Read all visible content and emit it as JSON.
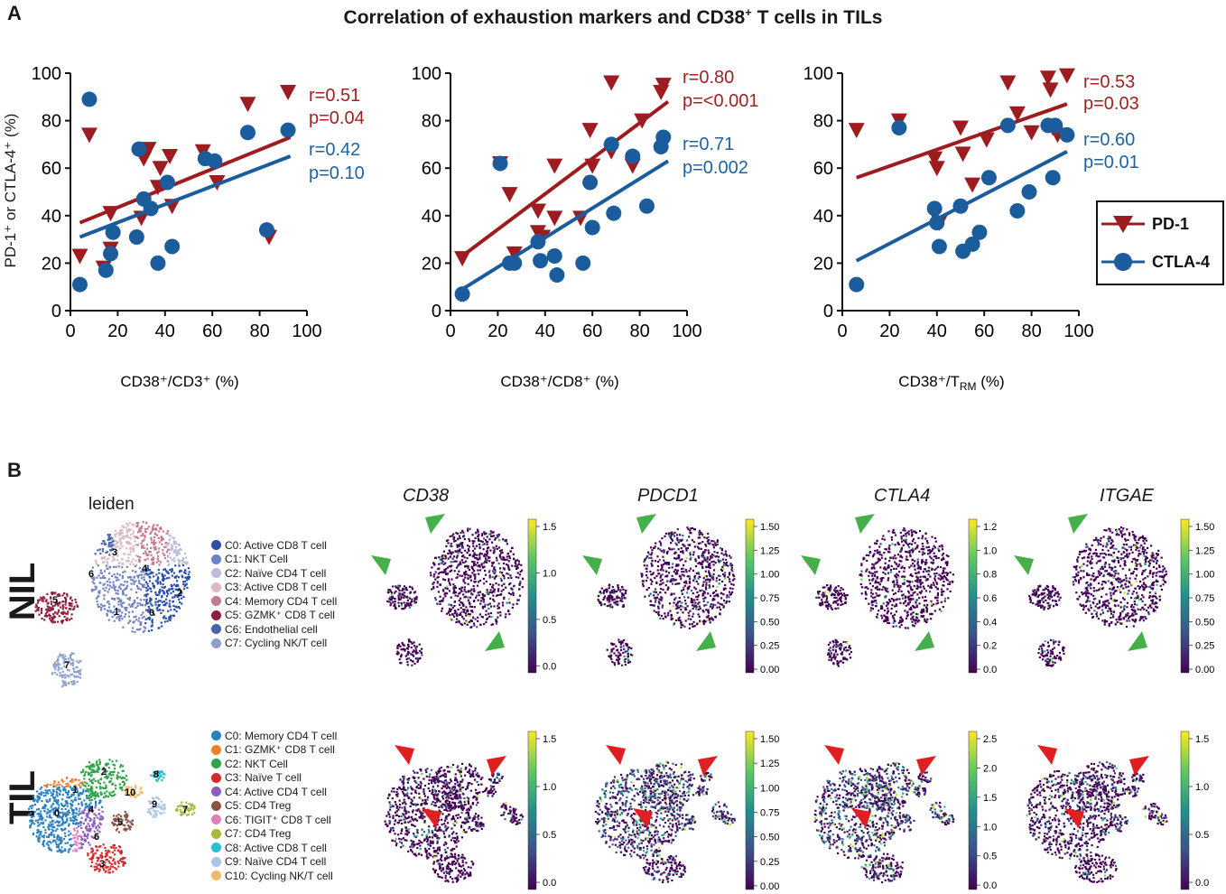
{
  "panel_a": {
    "letter": "A",
    "title_parts": [
      "Correlation of exhaustion markers and CD38",
      "+",
      " T cells in TILs"
    ]
  },
  "panel_b": {
    "letter": "B"
  },
  "y_axis_label": "PD-1⁺ or CTLA-4⁺ (%)",
  "legend": {
    "pd1": "PD-1",
    "ctla4": "CTLA-4"
  },
  "colors": {
    "pd1": "#9c1c1f",
    "ctla4": "#1b5c9c",
    "ann_pd1": "#a02222",
    "ann_ctla4": "#1e62a0",
    "green_arrow": "#45b049",
    "red_arrow": "#e02020"
  },
  "chart_data": [
    {
      "type": "scatter",
      "xlabel": "CD38⁺/CD3⁺ (%)",
      "ylabel": "PD-1⁺ or CTLA-4⁺ (%)",
      "xlim": [
        0,
        100
      ],
      "ylim": [
        0,
        100
      ],
      "xticks": [
        0,
        20,
        40,
        60,
        80,
        100
      ],
      "yticks": [
        0,
        20,
        40,
        60,
        80,
        100
      ],
      "series": [
        {
          "name": "PD-1",
          "marker": "triangle-down",
          "x": [
            4,
            8,
            14,
            17,
            17,
            30,
            31,
            33,
            37,
            38,
            42,
            43,
            56,
            62,
            75,
            84,
            92
          ],
          "y": [
            23,
            74,
            18,
            26,
            41,
            39,
            64,
            68,
            52,
            60,
            65,
            44,
            67,
            54,
            87,
            31,
            92
          ],
          "fit": [
            [
              4,
              37
            ],
            [
              93,
              73
            ]
          ],
          "r": "r=0.51",
          "p": "p=0.04"
        },
        {
          "name": "CTLA-4",
          "marker": "circle",
          "x": [
            4,
            8,
            15,
            17,
            18,
            28,
            29,
            31,
            34,
            37,
            41,
            43,
            57,
            61,
            75,
            83,
            92
          ],
          "y": [
            11,
            89,
            17,
            24,
            33,
            31,
            68,
            47,
            43,
            20,
            54,
            27,
            64,
            63,
            75,
            34,
            76
          ],
          "fit": [
            [
              4,
              31
            ],
            [
              93,
              65
            ]
          ],
          "r": "r=0.42",
          "p": "p=0.10"
        }
      ]
    },
    {
      "type": "scatter",
      "xlabel": "CD38⁺/CD8⁺ (%)",
      "ylabel": "",
      "xlim": [
        0,
        100
      ],
      "ylim": [
        0,
        100
      ],
      "xticks": [
        0,
        20,
        40,
        60,
        80,
        100
      ],
      "yticks": [
        0,
        20,
        40,
        60,
        80,
        100
      ],
      "series": [
        {
          "name": "PD-1",
          "marker": "triangle-down",
          "x": [
            5,
            21,
            25,
            27,
            37,
            37,
            39,
            44,
            44,
            55,
            59,
            60,
            68,
            68,
            77,
            81,
            89,
            90
          ],
          "y": [
            22,
            62,
            49,
            24,
            42,
            33,
            31,
            39,
            61,
            39,
            76,
            61,
            96,
            67,
            61,
            80,
            92,
            95
          ],
          "fit": [
            [
              5,
              23
            ],
            [
              92,
              88
            ]
          ],
          "r": "r=0.80",
          "p": "p=<0.001"
        },
        {
          "name": "CTLA-4",
          "marker": "circle",
          "x": [
            5,
            21,
            25,
            27,
            37,
            38,
            44,
            45,
            56,
            59,
            60,
            68,
            69,
            77,
            83,
            89,
            90
          ],
          "y": [
            7,
            62,
            20,
            20,
            29,
            21,
            23,
            15,
            20,
            54,
            35,
            70,
            41,
            65,
            44,
            69,
            73
          ],
          "fit": [
            [
              5,
              9
            ],
            [
              92,
              63
            ]
          ],
          "r": "r=0.71",
          "p": "p=0.002"
        }
      ]
    },
    {
      "type": "scatter",
      "xlabel": "CD38⁺/T_RM (%)",
      "ylabel": "",
      "xlim": [
        0,
        100
      ],
      "ylim": [
        0,
        100
      ],
      "xticks": [
        0,
        20,
        40,
        60,
        80,
        100
      ],
      "yticks": [
        0,
        20,
        40,
        60,
        80,
        100
      ],
      "series": [
        {
          "name": "PD-1",
          "marker": "triangle-down",
          "x": [
            6,
            24,
            39,
            40,
            41,
            50,
            51,
            55,
            61,
            70,
            74,
            80,
            87,
            88,
            89,
            91,
            95
          ],
          "y": [
            76,
            80,
            64,
            60,
            37,
            77,
            66,
            53,
            72,
            96,
            83,
            75,
            98,
            93,
            77,
            74,
            99
          ],
          "fit": [
            [
              6,
              56
            ],
            [
              95,
              87
            ]
          ],
          "r": "r=0.53",
          "p": "p=0.03"
        },
        {
          "name": "CTLA-4",
          "marker": "circle",
          "x": [
            6,
            24,
            39,
            40,
            41,
            50,
            51,
            55,
            58,
            62,
            70,
            74,
            79,
            87,
            89,
            90,
            95
          ],
          "y": [
            11,
            77,
            43,
            37,
            27,
            44,
            25,
            28,
            33,
            56,
            78,
            42,
            50,
            78,
            56,
            78,
            74
          ],
          "fit": [
            [
              6,
              21
            ],
            [
              95,
              67
            ]
          ],
          "r": "r=0.60",
          "p": "p=0.01"
        }
      ]
    }
  ],
  "leiden_title": "leiden",
  "nil": {
    "row_label": "NIL",
    "clusters": [
      {
        "label": "C0: Active CD8 T cell",
        "color": "#2a4fa8"
      },
      {
        "label": "C1: NKT Cell",
        "color": "#6e82c4"
      },
      {
        "label": "C2: Naïve CD4 T cell",
        "color": "#b9bdda"
      },
      {
        "label": "C3: Active CD8 T cell",
        "color": "#dcbac4"
      },
      {
        "label": "C4: Memory CD4 T cell",
        "color": "#c57a8e"
      },
      {
        "label": "C5: GZMK⁺ CD8 T cell",
        "color": "#8e1e3c"
      },
      {
        "label": "C6: Endothelial cell",
        "color": "#4863a8"
      },
      {
        "label": "C7: Cycling NK/T cell",
        "color": "#8c9fd0"
      }
    ],
    "genes": [
      {
        "name": "CD38",
        "ticks": [
          "1.5",
          "1.0",
          "0.5",
          "0.0"
        ]
      },
      {
        "name": "PDCD1",
        "ticks": [
          "1.50",
          "1.25",
          "1.00",
          "0.75",
          "0.50",
          "0.25",
          "0.00"
        ]
      },
      {
        "name": "CTLA4",
        "ticks": [
          "1.2",
          "1.0",
          "0.8",
          "0.6",
          "0.4",
          "0.2",
          "0.0"
        ]
      },
      {
        "name": "ITGAE",
        "ticks": [
          "1.50",
          "1.25",
          "1.00",
          "0.75",
          "0.50",
          "0.25",
          "0.00"
        ]
      }
    ]
  },
  "til": {
    "row_label": "TIL",
    "clusters": [
      {
        "label": "C0: Memory CD4 T cell",
        "color": "#2a80c0"
      },
      {
        "label": "C1: GZMK⁺ CD8 T cell",
        "color": "#f08030"
      },
      {
        "label": "C2: NKT Cell",
        "color": "#2fa24a"
      },
      {
        "label": "C3: Naïve T cell",
        "color": "#d42a2a"
      },
      {
        "label": "C4: Active CD4 T cell",
        "color": "#8b5cb8"
      },
      {
        "label": "C5: CD4 Treg",
        "color": "#8a5444"
      },
      {
        "label": "C6: TIGIT⁺ CD8 T cell",
        "color": "#e07cc0"
      },
      {
        "label": "C7: CD4 Treg",
        "color": "#a8b838"
      },
      {
        "label": "C8: Active CD8 T cell",
        "color": "#28c0d0"
      },
      {
        "label": "C9: Naïve CD4 T cell",
        "color": "#a8c4e8"
      },
      {
        "label": "C10: Cycling NK/T cell",
        "color": "#f4b868"
      }
    ],
    "genes": [
      {
        "name": "CD38",
        "ticks": [
          "1.5",
          "1.0",
          "0.5",
          "0.0"
        ]
      },
      {
        "name": "PDCD1",
        "ticks": [
          "1.50",
          "1.25",
          "1.00",
          "0.75",
          "0.50",
          "0.25",
          "0.00"
        ]
      },
      {
        "name": "CTLA4",
        "ticks": [
          "2.5",
          "2.0",
          "1.5",
          "1.0",
          "0.5",
          "0.0"
        ]
      },
      {
        "name": "ITGAE",
        "ticks": [
          "1.5",
          "1.0",
          "0.5",
          "0.0"
        ]
      }
    ]
  }
}
